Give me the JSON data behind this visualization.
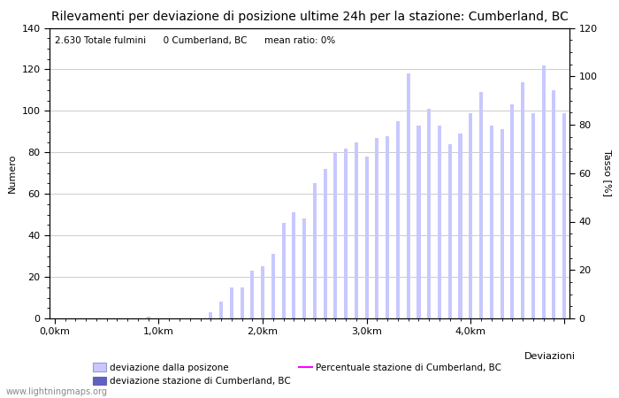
{
  "title": "Rilevamenti per deviazione di posizione ultime 24h per la stazione: Cumberland, BC",
  "subtitle": "2.630 Totale fulmini      0 Cumberland, BC      mean ratio: 0%",
  "ylabel_left": "Numero",
  "ylabel_right": "Tasso [%]",
  "xlabel": "Deviazioni",
  "watermark": "www.lightningmaps.org",
  "bar_values": [
    0,
    0,
    0,
    0,
    0,
    0,
    0,
    0,
    0,
    1,
    0,
    0,
    0,
    0,
    0,
    3,
    8,
    15,
    15,
    23,
    25,
    31,
    46,
    51,
    48,
    65,
    72,
    80,
    82,
    85,
    78,
    87,
    88,
    95,
    118,
    93,
    101,
    93,
    84,
    89,
    99,
    109,
    93,
    91,
    103,
    114,
    99,
    122,
    110,
    99
  ],
  "bar_color": "#c8c8ff",
  "bar_color_dark": "#6060c0",
  "bar_width": 0.35,
  "x_tick_positions": [
    0,
    10,
    20,
    30,
    40,
    49
  ],
  "x_tick_labels": [
    "0,0km",
    "1,0km",
    "2,0km",
    "3,0km",
    "4,0km",
    ""
  ],
  "ylim_left": [
    0,
    140
  ],
  "ylim_right": [
    0,
    120
  ],
  "yticks_left": [
    0,
    20,
    40,
    60,
    80,
    100,
    120,
    140
  ],
  "yticks_right": [
    0,
    20,
    40,
    60,
    80,
    100,
    120
  ],
  "legend_labels": [
    "deviazione dalla posizone",
    "deviazione stazione di Cumberland, BC",
    "Percentuale stazione di Cumberland, BC"
  ],
  "grid_color": "#cccccc",
  "bg_color": "#ffffff",
  "title_fontsize": 10,
  "label_fontsize": 8,
  "tick_fontsize": 8
}
